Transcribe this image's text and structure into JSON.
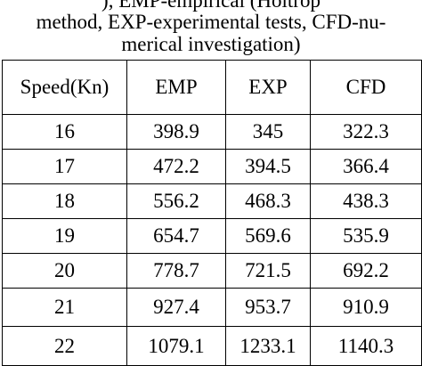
{
  "caption": {
    "line0": "",
    "line1": "method,  EXP-experimental tests, CFD-nu-",
    "line2": "merical investigation)",
    "line0_visible": "), EMP-empirical (Holtrop"
  },
  "table": {
    "headers": [
      "Speed(Kn)",
      "EMP",
      "EXP",
      "CFD"
    ],
    "rows": [
      [
        "16",
        "398.9",
        "345",
        "322.3"
      ],
      [
        "17",
        "472.2",
        "394.5",
        "366.4"
      ],
      [
        "18",
        "556.2",
        "468.3",
        "438.3"
      ],
      [
        "19",
        "654.7",
        "569.6",
        "535.9"
      ],
      [
        "20",
        "778.7",
        "721.5",
        "692.2"
      ],
      [
        "21",
        "927.4",
        "953.7",
        "910.9"
      ],
      [
        "22",
        "1079.1",
        "1233.1",
        "1140.3"
      ]
    ]
  }
}
